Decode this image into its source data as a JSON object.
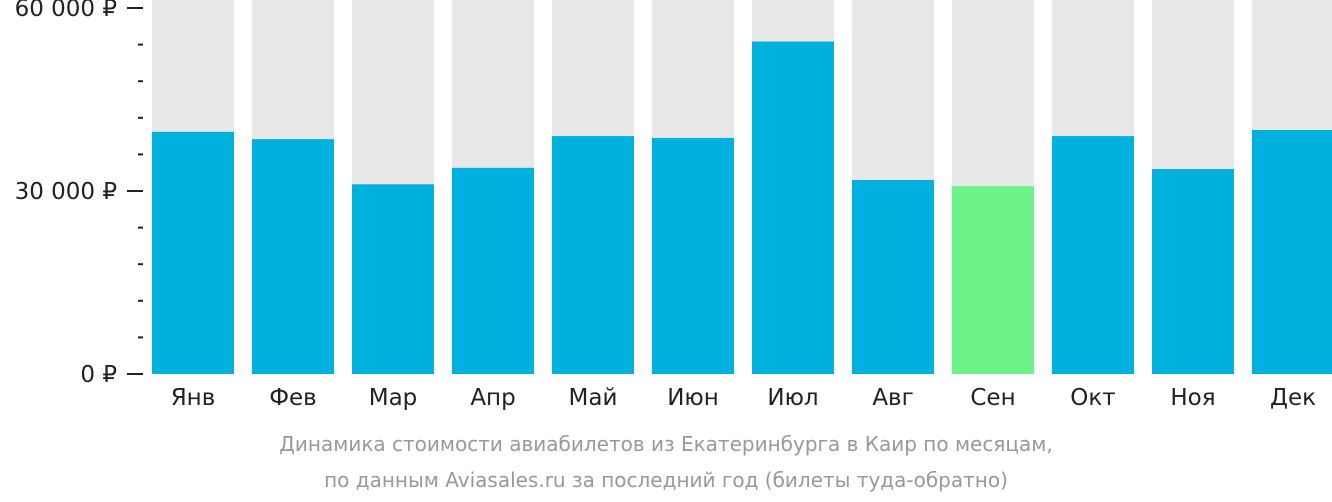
{
  "chart_data": {
    "type": "bar",
    "categories": [
      "Янв",
      "Фев",
      "Мар",
      "Апр",
      "Май",
      "Июн",
      "Июл",
      "Авг",
      "Сен",
      "Окт",
      "Ноя",
      "Дек"
    ],
    "values": [
      39700,
      38500,
      31100,
      33800,
      39000,
      38700,
      54500,
      31800,
      30800,
      39000,
      33600,
      40000
    ],
    "ylim": [
      0,
      60000
    ],
    "y_ticks": [
      {
        "value": 0,
        "label": "0 ₽"
      },
      {
        "value": 30000,
        "label": "30 000 ₽"
      },
      {
        "value": 60000,
        "label": "60 000 ₽"
      }
    ],
    "minor_tick_step": 6000,
    "highlight_index": 8,
    "colors": {
      "bar": "#00b0dd",
      "highlight": "#6cf287",
      "background_bar": "#e8e8e8",
      "axis": "#222222",
      "label": "#222222"
    },
    "caption": [
      "Динамика стоимости авиабилетов из Екатеринбурга в Каир по месяцам,",
      "по данным Aviasales.ru за последний год (билеты туда-обратно)"
    ]
  }
}
